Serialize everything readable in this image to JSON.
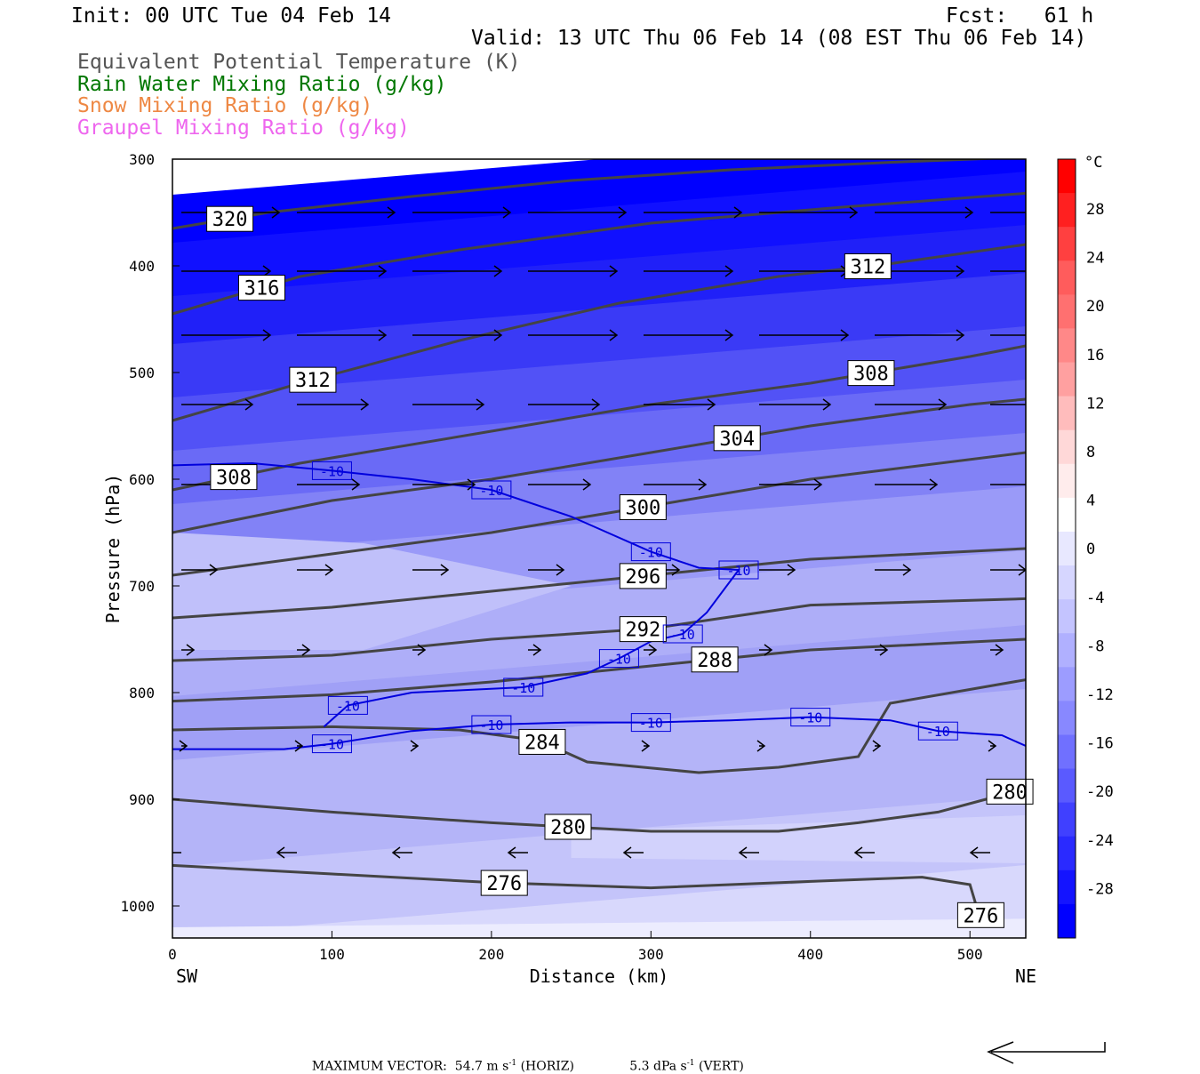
{
  "header": {
    "init": "Init: 00 UTC Tue 04 Feb 14",
    "fcst": "Fcst:   61 h",
    "valid": "Valid: 13 UTC Thu 06 Feb 14 (08 EST Thu 06 Feb 14)"
  },
  "legend": [
    {
      "label": "Equivalent Potential Temperature (K)",
      "color": "#555555"
    },
    {
      "label": "Rain Water Mixing Ratio (g/kg)",
      "color": "#007700"
    },
    {
      "label": "Snow Mixing Ratio (g/kg)",
      "color": "#ee8844"
    },
    {
      "label": "Graupel Mixing Ratio (g/kg)",
      "color": "#ee66ee"
    }
  ],
  "chart_data": {
    "type": "contour-cross-section",
    "xlabel": "Distance (km)",
    "ylabel": "Pressure (hPa)",
    "xlim": [
      0,
      535
    ],
    "ylim": [
      1030,
      300
    ],
    "x_ticks": [
      "0",
      "100",
      "200",
      "300",
      "400",
      "500"
    ],
    "y_ticks": [
      "300",
      "400",
      "500",
      "600",
      "700",
      "800",
      "900",
      "1000"
    ],
    "left_end": "SW",
    "right_end": "NE",
    "colorbar": {
      "unit": "°C",
      "labels": [
        "28",
        "24",
        "20",
        "16",
        "12",
        "8",
        "4",
        "0",
        "-4",
        "-8",
        "-12",
        "-16",
        "-20",
        "-24",
        "-28"
      ]
    },
    "theta_e_contours": [
      {
        "label": "320",
        "points": [
          [
            0,
            365
          ],
          [
            60,
            350
          ],
          [
            150,
            335
          ],
          [
            250,
            320
          ],
          [
            350,
            310
          ],
          [
            450,
            303
          ],
          [
            535,
            298
          ]
        ]
      },
      {
        "label": "316",
        "points": [
          [
            0,
            445
          ],
          [
            80,
            410
          ],
          [
            180,
            385
          ],
          [
            300,
            360
          ],
          [
            420,
            345
          ],
          [
            535,
            332
          ]
        ]
      },
      {
        "label": "312",
        "points": [
          [
            0,
            545
          ],
          [
            80,
            510
          ],
          [
            180,
            470
          ],
          [
            280,
            435
          ],
          [
            380,
            410
          ],
          [
            450,
            398
          ],
          [
            535,
            380
          ]
        ]
      },
      {
        "label": "308",
        "points": [
          [
            0,
            610
          ],
          [
            80,
            585
          ],
          [
            200,
            555
          ],
          [
            300,
            530
          ],
          [
            400,
            510
          ],
          [
            500,
            485
          ],
          [
            535,
            475
          ]
        ]
      },
      {
        "label": "304",
        "points": [
          [
            0,
            650
          ],
          [
            100,
            620
          ],
          [
            200,
            600
          ],
          [
            300,
            575
          ],
          [
            400,
            550
          ],
          [
            500,
            530
          ],
          [
            535,
            525
          ]
        ]
      },
      {
        "label": "300",
        "points": [
          [
            0,
            690
          ],
          [
            100,
            670
          ],
          [
            200,
            650
          ],
          [
            300,
            625
          ],
          [
            400,
            600
          ],
          [
            535,
            575
          ]
        ]
      },
      {
        "label": "296",
        "points": [
          [
            0,
            730
          ],
          [
            100,
            720
          ],
          [
            200,
            705
          ],
          [
            300,
            690
          ],
          [
            400,
            675
          ],
          [
            535,
            665
          ]
        ]
      },
      {
        "label": "292",
        "points": [
          [
            0,
            770
          ],
          [
            100,
            765
          ],
          [
            200,
            750
          ],
          [
            300,
            740
          ],
          [
            400,
            718
          ],
          [
            535,
            712
          ]
        ]
      },
      {
        "label": "288",
        "points": [
          [
            0,
            808
          ],
          [
            100,
            802
          ],
          [
            200,
            790
          ],
          [
            300,
            775
          ],
          [
            400,
            760
          ],
          [
            535,
            750
          ]
        ]
      },
      {
        "label": "284",
        "points": [
          [
            0,
            835
          ],
          [
            100,
            832
          ],
          [
            180,
            835
          ],
          [
            230,
            845
          ],
          [
            260,
            865
          ],
          [
            330,
            875
          ],
          [
            380,
            870
          ],
          [
            430,
            860
          ],
          [
            450,
            810
          ],
          [
            535,
            788
          ]
        ]
      },
      {
        "label": "280",
        "points": [
          [
            0,
            900
          ],
          [
            100,
            912
          ],
          [
            200,
            922
          ],
          [
            300,
            930
          ],
          [
            380,
            930
          ],
          [
            430,
            922
          ],
          [
            480,
            912
          ],
          [
            510,
            900
          ],
          [
            535,
            888
          ]
        ]
      },
      {
        "label": "276",
        "points": [
          [
            0,
            962
          ],
          [
            100,
            970
          ],
          [
            200,
            978
          ],
          [
            300,
            983
          ],
          [
            400,
            977
          ],
          [
            470,
            973
          ],
          [
            500,
            980
          ],
          [
            505,
            1005
          ],
          [
            510,
            1015
          ]
        ]
      }
    ],
    "temperature_contours": [
      {
        "label": "-10",
        "points": [
          [
            0,
            587
          ],
          [
            50,
            585
          ],
          [
            100,
            592
          ],
          [
            150,
            600
          ],
          [
            200,
            610
          ],
          [
            250,
            635
          ],
          [
            300,
            668
          ],
          [
            330,
            683
          ],
          [
            355,
            685
          ],
          [
            335,
            725
          ],
          [
            320,
            745
          ],
          [
            300,
            752
          ],
          [
            280,
            768
          ],
          [
            260,
            782
          ],
          [
            220,
            795
          ],
          [
            150,
            800
          ],
          [
            110,
            812
          ],
          [
            95,
            832
          ]
        ]
      },
      {
        "label": "-10",
        "points": [
          [
            0,
            853
          ],
          [
            70,
            853
          ],
          [
            100,
            848
          ],
          [
            150,
            836
          ],
          [
            200,
            830
          ],
          [
            250,
            828
          ],
          [
            300,
            828
          ],
          [
            350,
            826
          ],
          [
            400,
            823
          ],
          [
            450,
            826
          ],
          [
            480,
            836
          ],
          [
            520,
            840
          ],
          [
            535,
            850
          ]
        ]
      }
    ],
    "wind_vectors": "horizontal-vertical circulation vectors; westerly aloft, weak easterly near surface",
    "max_vector_horiz": "54.7 m s",
    "max_vector_vert": "5.3 dPa s"
  },
  "footer": {
    "label": "MAXIMUM VECTOR:",
    "horiz": "54.7 m s",
    "horiz_tail": " (HORIZ)",
    "vert": "5.3 dPa s",
    "vert_tail": " (VERT)",
    "sup": "-1"
  }
}
